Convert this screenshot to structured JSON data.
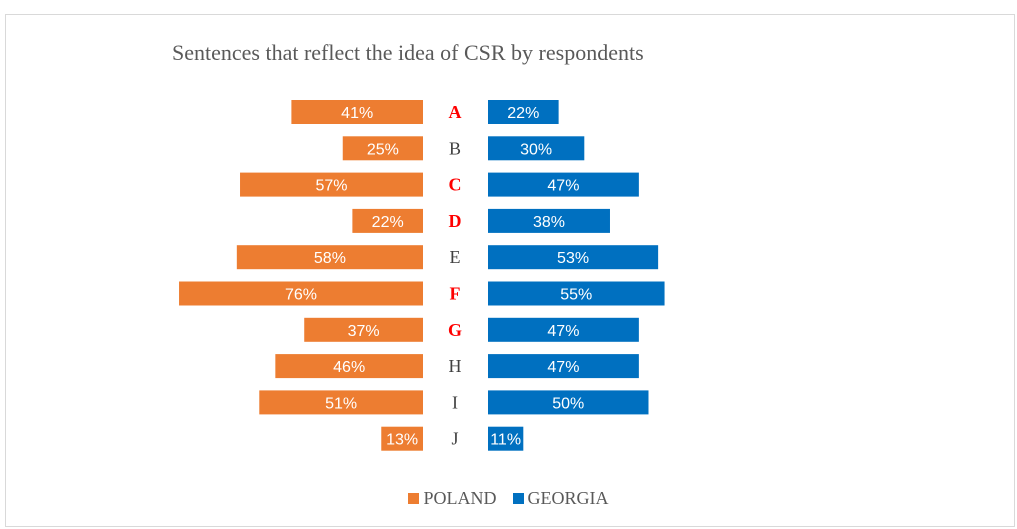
{
  "chart_data": {
    "type": "bar",
    "title": "Sentences that reflect the idea of CSR by respondents",
    "categories": [
      "A",
      "B",
      "C",
      "D",
      "E",
      "F",
      "G",
      "H",
      "I",
      "J"
    ],
    "highlighted_categories": [
      "A",
      "C",
      "D",
      "F",
      "G"
    ],
    "series": [
      {
        "name": "POLAND",
        "color": "#ed7d31",
        "values": [
          41,
          25,
          57,
          22,
          58,
          76,
          37,
          46,
          51,
          13
        ],
        "labels": [
          "41%",
          "25%",
          "57%",
          "22%",
          "58%",
          "76%",
          "37%",
          "46%",
          "51%",
          "13%"
        ]
      },
      {
        "name": "GEORGIA",
        "color": "#0070c0",
        "values": [
          22,
          30,
          47,
          38,
          53,
          55,
          47,
          47,
          50,
          11
        ],
        "labels": [
          "22%",
          "30%",
          "47%",
          "38%",
          "53%",
          "55%",
          "47%",
          "47%",
          "50%",
          "11%"
        ]
      }
    ],
    "value_unit": "%",
    "orientation": "horizontal-diverging",
    "legend_position": "bottom",
    "grid": false,
    "category_colors": {
      "normal": "#404040",
      "highlighted": "#ff0000"
    }
  }
}
